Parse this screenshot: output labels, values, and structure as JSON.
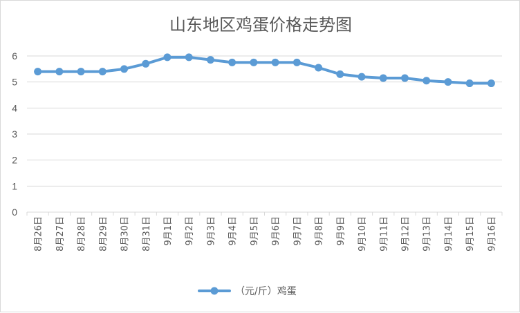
{
  "chart_data": {
    "type": "line",
    "title": "山东地区鸡蛋价格走势图",
    "categories": [
      "8月26日",
      "8月27日",
      "8月28日",
      "8月29日",
      "8月30日",
      "8月31日",
      "9月1日",
      "9月2日",
      "9月3日",
      "9月4日",
      "9月5日",
      "9月6日",
      "9月7日",
      "9月8日",
      "9月9日",
      "9月10日",
      "9月11日",
      "9月12日",
      "9月13日",
      "9月14日",
      "9月15日",
      "9月16日"
    ],
    "series": [
      {
        "name": "（元/斤）鸡蛋",
        "values": [
          5.4,
          5.4,
          5.4,
          5.4,
          5.5,
          5.7,
          5.95,
          5.95,
          5.85,
          5.75,
          5.75,
          5.75,
          5.75,
          5.55,
          5.3,
          5.2,
          5.15,
          5.15,
          5.05,
          5.0,
          4.95,
          4.95
        ],
        "color": "#5b9bd5"
      }
    ],
    "ylim": [
      0,
      6
    ],
    "yticks": [
      "0",
      "1",
      "2",
      "3",
      "4",
      "5",
      "6"
    ],
    "grid": true,
    "legend": "bottom",
    "axis_color": "#d9d9d9",
    "grid_color": "#d9d9d9",
    "text_color": "#595959"
  }
}
